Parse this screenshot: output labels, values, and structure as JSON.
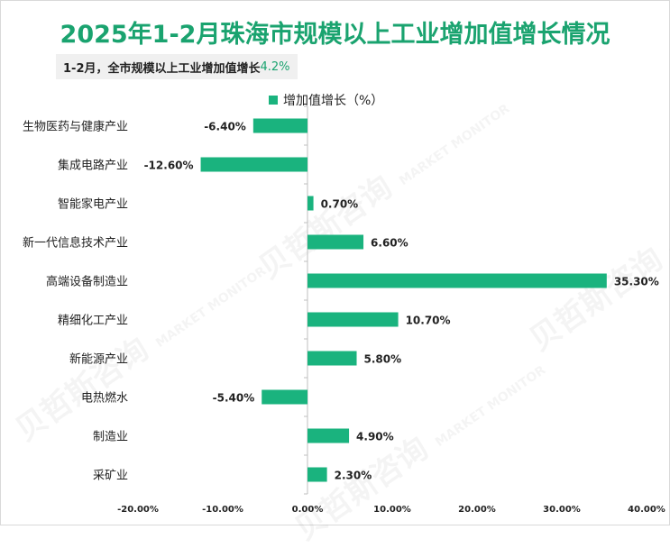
{
  "title": "2025年1-2月珠海市规模以上工业增加值增长情况",
  "subtitle": {
    "label": "1-2月，全市规模以上工业增加值增长",
    "value": "4.2%"
  },
  "watermark": {
    "brand": "贝哲斯咨询",
    "tagline": "MARKET MONITOR"
  },
  "colors": {
    "bar": "#1ab37e",
    "title": "#1aa36f"
  },
  "chart_data": {
    "type": "bar",
    "orientation": "horizontal",
    "categories": [
      "生物医药与健康产业",
      "集成电路产业",
      "智能家电产业",
      "新一代信息技术产业",
      "高端设备制造业",
      "精细化工产业",
      "新能源产业",
      "电热燃水",
      "制造业",
      "采矿业"
    ],
    "series": [
      {
        "name": "增加值增长（%）",
        "values": [
          -6.4,
          -12.6,
          0.7,
          6.6,
          35.3,
          10.7,
          5.8,
          -5.4,
          4.9,
          2.3
        ],
        "labels": [
          "-6.40%",
          "-12.60%",
          "0.70%",
          "6.60%",
          "35.30%",
          "10.70%",
          "5.80%",
          "-5.40%",
          "4.90%",
          "2.30%"
        ]
      }
    ],
    "xlim": [
      -20,
      40
    ],
    "xticks": [
      -20,
      -10,
      0,
      10,
      20,
      30,
      40
    ],
    "xtick_labels": [
      "-20.00%",
      "-10.00%",
      "0.00%",
      "10.00%",
      "20.00%",
      "30.00%",
      "40.00%"
    ],
    "legend_position": "top",
    "grid": false
  }
}
